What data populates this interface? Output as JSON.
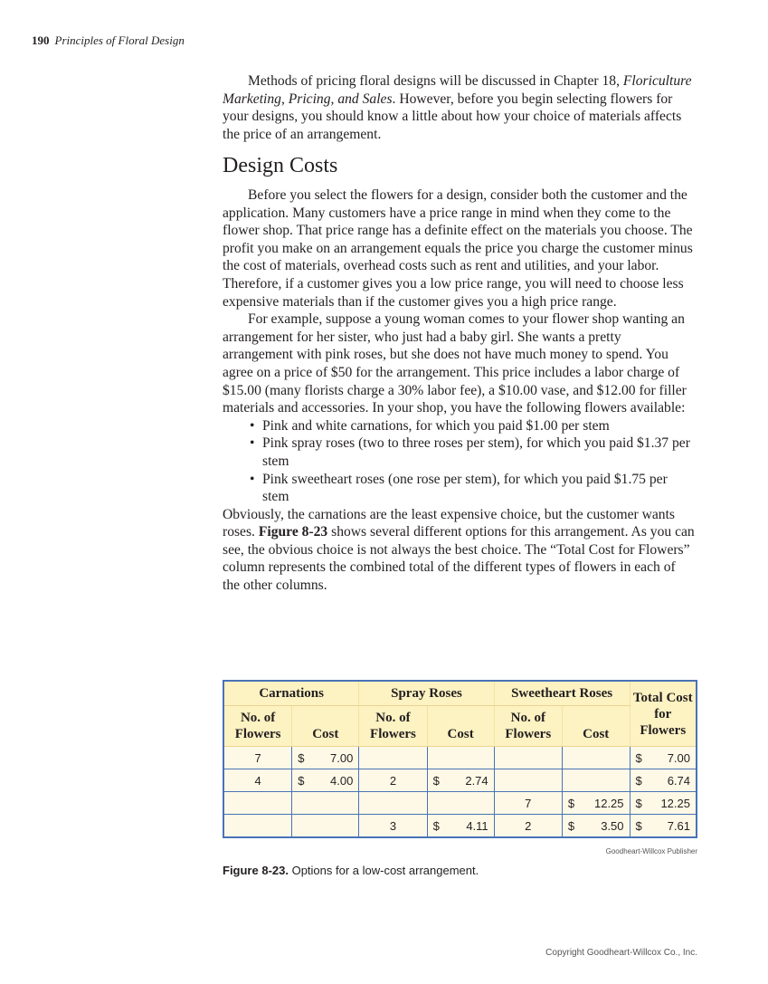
{
  "header": {
    "page_number": "190",
    "book_title": "Principles of Floral Design"
  },
  "intro": {
    "before": "Methods of pricing floral designs will be discussed in Chapter 18, ",
    "chapter_title": "Floriculture Marketing, Pricing, and Sales",
    "after": ". However, before you begin selecting flowers for your designs, you should know a little about how your choice of materials affects the price of an arrangement."
  },
  "section": {
    "heading": "Design Costs",
    "p1": "Before you select the flowers for a design, consider both the customer and the application. Many customers have a price range in mind when they come to the flower shop. That price range has a definite effect on the materials you choose. The profit you make on an arrangement equals the price you charge the customer minus the cost of materials, overhead costs such as rent and utilities, and your labor. Therefore, if a customer gives you a low price range, you will need to choose less expensive materials than if the customer gives you a high price range.",
    "p2": "For example, suppose a young woman comes to your flower shop wanting an arrangement for her sister, who just had a baby girl. She wants a pretty arrangement with pink roses, but she does not have much money to spend. You agree on a price of $50 for the arrangement. This price includes a labor charge of $15.00 (many florists charge a 30% labor fee), a $10.00 vase, and $12.00 for filler materials and accessories. In your shop, you have the following flowers available:",
    "bullets": [
      "Pink and white carnations, for which you paid $1.00 per stem",
      "Pink spray roses (two to three roses per stem), for which you paid $1.37 per stem",
      "Pink sweetheart roses (one rose per stem), for which you paid $1.75 per stem"
    ],
    "p3_before": "Obviously, the carnations are the least expensive choice, but the customer wants roses. ",
    "p3_ref": "Figure 8-23",
    "p3_after": " shows several different options for this arrangement. As you can see, the obvious choice is not always the best choice. The “Total Cost for Flowers” column represents the combined total of the different types of flowers in each of the other columns."
  },
  "table": {
    "groups": [
      "Carnations",
      "Spray Roses",
      "Sweetheart Roses"
    ],
    "total_header": "Total Cost for Flowers",
    "sub_no": "No. of Flowers",
    "sub_cost": "Cost",
    "currency": "$",
    "rows": [
      {
        "carn_no": "7",
        "carn_cost": "7.00",
        "spray_no": "",
        "spray_cost": "",
        "sweet_no": "",
        "sweet_cost": "",
        "total": "7.00"
      },
      {
        "carn_no": "4",
        "carn_cost": "4.00",
        "spray_no": "2",
        "spray_cost": "2.74",
        "sweet_no": "",
        "sweet_cost": "",
        "total": "6.74"
      },
      {
        "carn_no": "",
        "carn_cost": "",
        "spray_no": "",
        "spray_cost": "",
        "sweet_no": "7",
        "sweet_cost": "12.25",
        "total": "12.25"
      },
      {
        "carn_no": "",
        "carn_cost": "",
        "spray_no": "3",
        "spray_cost": "4.11",
        "sweet_no": "2",
        "sweet_cost": "3.50",
        "total": "7.61"
      }
    ],
    "header_color": "#fdf2c2",
    "body_color": "#fef9e6",
    "border_color": "#4a72b8"
  },
  "figure": {
    "credit": "Goodheart-Willcox Publisher",
    "label": "Figure 8-23.",
    "caption": " Options for a low-cost arrangement."
  },
  "footer": {
    "copyright": "Copyright Goodheart-Willcox Co., Inc."
  }
}
